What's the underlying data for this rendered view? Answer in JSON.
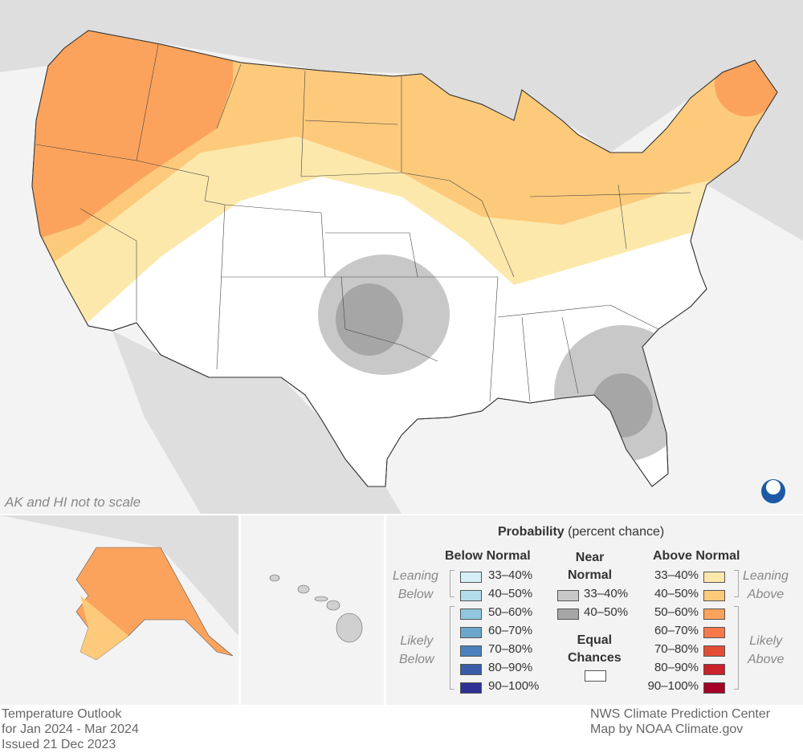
{
  "map": {
    "scale_note": "AK and HI not to scale",
    "logo": "NOAA"
  },
  "legend": {
    "title": "Probability",
    "title_suffix": "(percent chance)",
    "below": {
      "heading": "Below Normal",
      "leaning": [
        "Leaning",
        "Below"
      ],
      "likely": [
        "Likely",
        "Below"
      ],
      "items": [
        {
          "label": "33–40%",
          "color": "#d6eef6"
        },
        {
          "label": "40–50%",
          "color": "#b3dceb"
        },
        {
          "label": "50–60%",
          "color": "#90c7df"
        },
        {
          "label": "60–70%",
          "color": "#6ba7cd"
        },
        {
          "label": "70–80%",
          "color": "#4b80bc"
        },
        {
          "label": "80–90%",
          "color": "#3a5ca8"
        },
        {
          "label": "90–100%",
          "color": "#2e3191"
        }
      ]
    },
    "near": {
      "heading": [
        "Near",
        "Normal"
      ],
      "items": [
        {
          "label": "33–40%",
          "color": "#c8c8c8"
        },
        {
          "label": "40–50%",
          "color": "#a6a6a6"
        }
      ]
    },
    "equal": {
      "heading": [
        "Equal",
        "Chances"
      ],
      "color": "#ffffff"
    },
    "above": {
      "heading": "Above Normal",
      "leaning": [
        "Leaning",
        "Above"
      ],
      "likely": [
        "Likely",
        "Above"
      ],
      "items": [
        {
          "label": "33–40%",
          "color": "#fde8ac"
        },
        {
          "label": "40–50%",
          "color": "#fdca7b"
        },
        {
          "label": "50–60%",
          "color": "#fba35c"
        },
        {
          "label": "60–70%",
          "color": "#f57949"
        },
        {
          "label": "70–80%",
          "color": "#e34d35"
        },
        {
          "label": "80–90%",
          "color": "#c9222a"
        },
        {
          "label": "90–100%",
          "color": "#a50026"
        }
      ]
    }
  },
  "footer": {
    "left": [
      "Temperature Outlook",
      "for Jan 2024 - Mar 2024",
      "Issued 21 Dec 2023"
    ],
    "right": [
      "NWS Climate Prediction Center",
      "Map by NOAA Climate.gov"
    ]
  }
}
